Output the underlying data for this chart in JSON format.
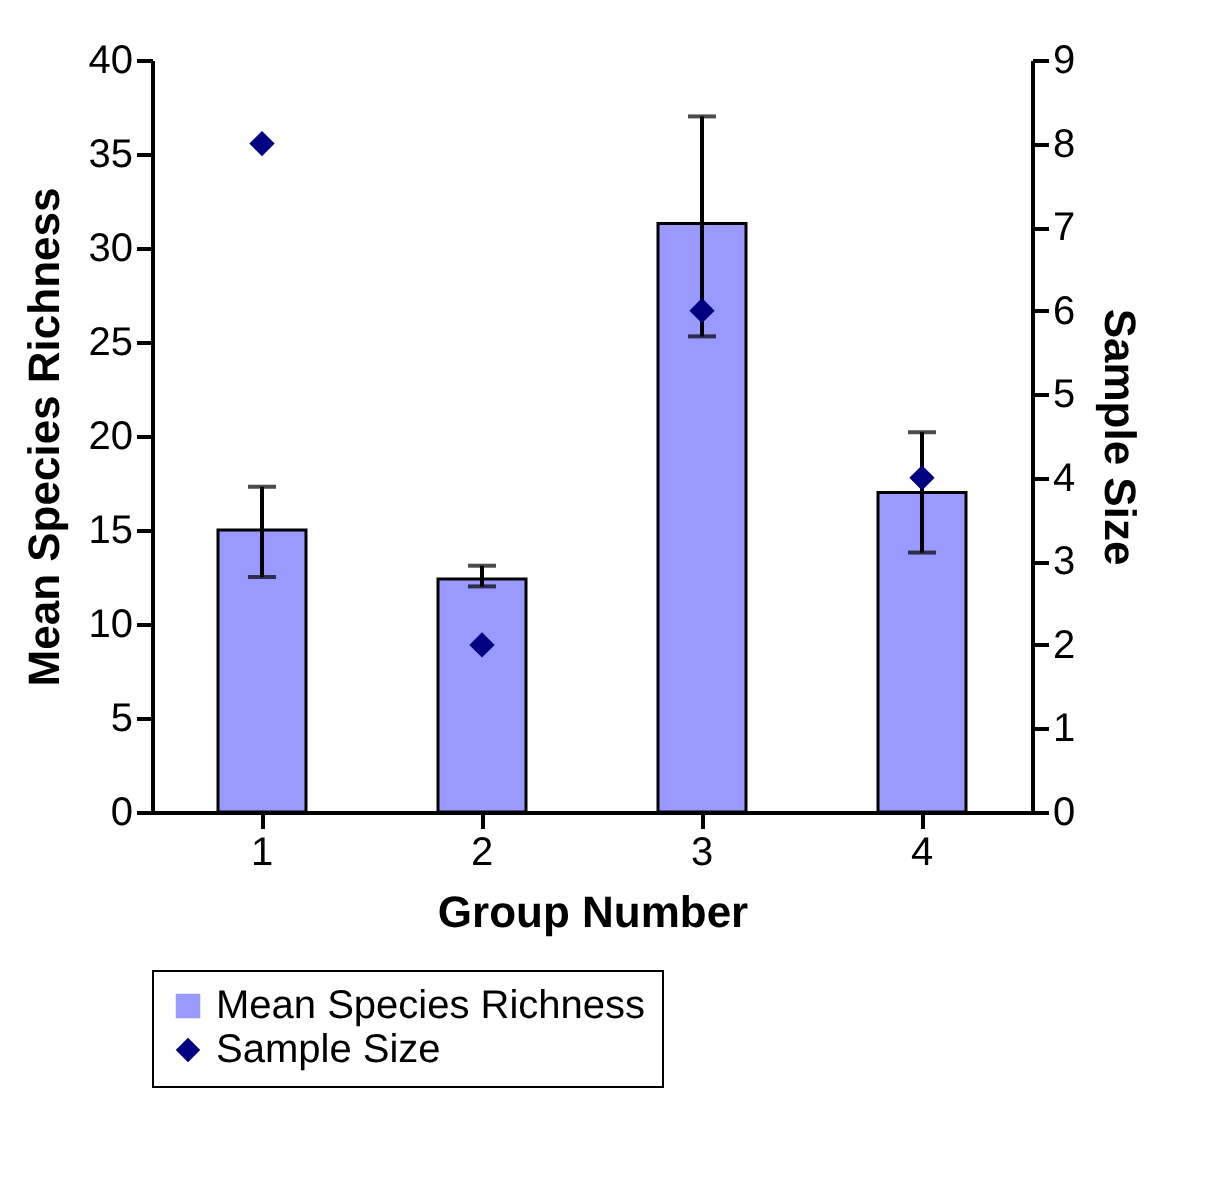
{
  "chart_data": {
    "type": "bar",
    "xlabel": "Group Number",
    "ylabel": "Mean Species Richness",
    "y2label": "Sample Size",
    "categories": [
      "1",
      "2",
      "3",
      "4"
    ],
    "series": [
      {
        "name": "Mean Species Richness",
        "color": "#9999ff",
        "values": [
          15.0,
          12.4,
          31.3,
          17.0
        ],
        "errors": [
          [
            12.5,
            17.3
          ],
          [
            12.0,
            13.1
          ],
          [
            25.3,
            37.0
          ],
          [
            13.8,
            20.2
          ]
        ]
      },
      {
        "name": "Sample Size",
        "type": "scatter",
        "axis": "y2",
        "color": "#000080",
        "values": [
          8,
          2,
          6,
          4
        ]
      }
    ],
    "ylim": [
      0,
      40
    ],
    "yticks": [
      0,
      5,
      10,
      15,
      20,
      25,
      30,
      35,
      40
    ],
    "y2lim": [
      0,
      9
    ],
    "y2ticks": [
      0,
      1,
      2,
      3,
      4,
      5,
      6,
      7,
      8,
      9
    ],
    "marker": "diamond",
    "legend": "bottom"
  }
}
